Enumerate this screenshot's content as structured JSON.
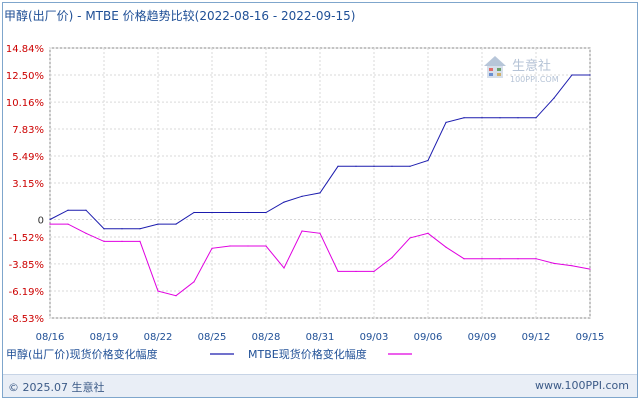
{
  "title": "甲醇(出厂价) - MTBE 价格趋势比较(2022-08-16 - 2022-09-15)",
  "watermark": {
    "brand": "生意社",
    "url": "100PPI.COM"
  },
  "footer": {
    "copyright": "© 2025.07 生意社",
    "url": "www.100PPI.com"
  },
  "colors": {
    "series1": "#1c1cae",
    "series2": "#e000e0",
    "positive_tick": "#cc0000",
    "negative_tick": "#cc0000",
    "zero_tick": "#333333",
    "axis_label": "#1f4f96"
  },
  "chart_data": {
    "type": "line",
    "title": "甲醇(出厂价) - MTBE 价格趋势比较(2022-08-16 - 2022-09-15)",
    "x_tick_labels": [
      "08/16",
      "08/19",
      "08/22",
      "08/25",
      "08/28",
      "08/31",
      "09/03",
      "09/06",
      "09/09",
      "09/12",
      "09/15"
    ],
    "y_tick_labels": [
      "14.84%",
      "12.50%",
      "10.16%",
      "7.83%",
      "5.49%",
      "3.15%",
      "0",
      "-1.52%",
      "-3.85%",
      "-6.19%",
      "-8.53%"
    ],
    "ylim": [
      -8.53,
      14.84
    ],
    "xlim": [
      "08/16",
      "09/15"
    ],
    "grid": true,
    "legend_position": "bottom",
    "series": [
      {
        "name": "甲醇(出厂价)现货价格变化幅度",
        "dates": [
          "08/16",
          "08/17",
          "08/18",
          "08/19",
          "08/20",
          "08/21",
          "08/22",
          "08/23",
          "08/24",
          "08/25",
          "08/26",
          "08/27",
          "08/28",
          "08/29",
          "08/30",
          "08/31",
          "09/01",
          "09/02",
          "09/03",
          "09/04",
          "09/05",
          "09/06",
          "09/07",
          "09/08",
          "09/09",
          "09/10",
          "09/11",
          "09/12",
          "09/13",
          "09/14",
          "09/15"
        ],
        "values": [
          0.0,
          0.8,
          0.8,
          -0.8,
          -0.8,
          -0.8,
          -0.4,
          -0.4,
          0.6,
          0.6,
          0.6,
          0.6,
          0.6,
          1.5,
          2.0,
          2.3,
          4.6,
          4.6,
          4.6,
          4.6,
          4.6,
          5.1,
          8.4,
          8.8,
          8.8,
          8.8,
          8.8,
          8.8,
          10.5,
          12.5,
          12.5
        ]
      },
      {
        "name": "MTBE现货价格变化幅度",
        "dates": [
          "08/16",
          "08/17",
          "08/18",
          "08/19",
          "08/20",
          "08/21",
          "08/22",
          "08/23",
          "08/24",
          "08/25",
          "08/26",
          "08/27",
          "08/28",
          "08/29",
          "08/30",
          "08/31",
          "09/01",
          "09/02",
          "09/03",
          "09/04",
          "09/05",
          "09/06",
          "09/07",
          "09/08",
          "09/09",
          "09/10",
          "09/11",
          "09/12",
          "09/13",
          "09/14",
          "09/15"
        ],
        "values": [
          -0.4,
          -0.4,
          -1.2,
          -1.9,
          -1.9,
          -1.9,
          -6.2,
          -6.6,
          -5.4,
          -2.5,
          -2.3,
          -2.3,
          -2.3,
          -4.2,
          -1.0,
          -1.2,
          -4.5,
          -4.5,
          -4.5,
          -3.3,
          -1.6,
          -1.2,
          -2.4,
          -3.4,
          -3.4,
          -3.4,
          -3.4,
          -3.4,
          -3.8,
          -4.0,
          -4.3
        ]
      }
    ]
  }
}
